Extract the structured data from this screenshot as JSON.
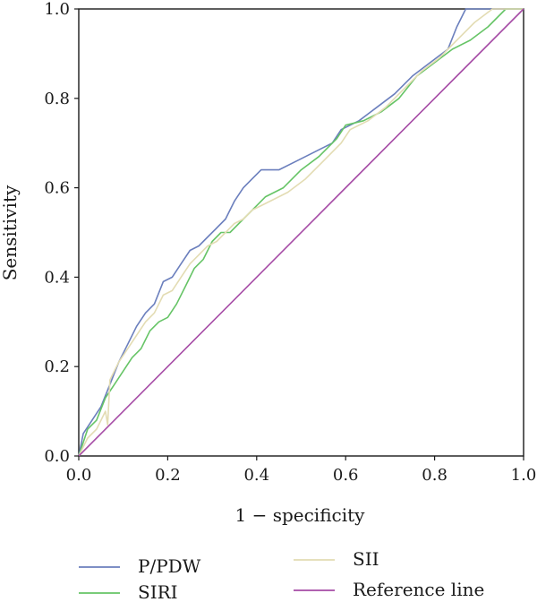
{
  "chart_data": {
    "type": "line",
    "title": "",
    "xlabel": "1 − specificity",
    "ylabel": "Sensitivity",
    "xlim": [
      0.0,
      1.0
    ],
    "ylim": [
      0.0,
      1.0
    ],
    "xticks": [
      "0.0",
      "0.2",
      "0.4",
      "0.6",
      "0.8",
      "1.0"
    ],
    "yticks": [
      "0.0",
      "0.2",
      "0.4",
      "0.6",
      "0.8",
      "1.0"
    ],
    "grid": false,
    "legend_position": "bottom",
    "series": [
      {
        "name": "P/PDW",
        "color": "#6b7fbd",
        "points": [
          [
            0,
            0
          ],
          [
            0.01,
            0.05
          ],
          [
            0.03,
            0.08
          ],
          [
            0.05,
            0.11
          ],
          [
            0.07,
            0.16
          ],
          [
            0.09,
            0.21
          ],
          [
            0.11,
            0.25
          ],
          [
            0.13,
            0.29
          ],
          [
            0.15,
            0.32
          ],
          [
            0.17,
            0.34
          ],
          [
            0.19,
            0.39
          ],
          [
            0.21,
            0.4
          ],
          [
            0.23,
            0.43
          ],
          [
            0.25,
            0.46
          ],
          [
            0.27,
            0.47
          ],
          [
            0.29,
            0.49
          ],
          [
            0.31,
            0.51
          ],
          [
            0.33,
            0.53
          ],
          [
            0.35,
            0.57
          ],
          [
            0.37,
            0.6
          ],
          [
            0.39,
            0.62
          ],
          [
            0.41,
            0.64
          ],
          [
            0.45,
            0.64
          ],
          [
            0.49,
            0.66
          ],
          [
            0.53,
            0.68
          ],
          [
            0.57,
            0.7
          ],
          [
            0.59,
            0.73
          ],
          [
            0.63,
            0.75
          ],
          [
            0.67,
            0.78
          ],
          [
            0.71,
            0.81
          ],
          [
            0.75,
            0.85
          ],
          [
            0.79,
            0.88
          ],
          [
            0.83,
            0.91
          ],
          [
            0.85,
            0.96
          ],
          [
            0.87,
            1.0
          ],
          [
            1.0,
            1.0
          ]
        ]
      },
      {
        "name": "SIRI",
        "color": "#66c466",
        "points": [
          [
            0,
            0
          ],
          [
            0.02,
            0.06
          ],
          [
            0.04,
            0.08
          ],
          [
            0.06,
            0.13
          ],
          [
            0.08,
            0.16
          ],
          [
            0.1,
            0.19
          ],
          [
            0.12,
            0.22
          ],
          [
            0.14,
            0.24
          ],
          [
            0.16,
            0.28
          ],
          [
            0.18,
            0.3
          ],
          [
            0.2,
            0.31
          ],
          [
            0.22,
            0.34
          ],
          [
            0.24,
            0.38
          ],
          [
            0.26,
            0.42
          ],
          [
            0.28,
            0.44
          ],
          [
            0.3,
            0.48
          ],
          [
            0.32,
            0.5
          ],
          [
            0.34,
            0.5
          ],
          [
            0.36,
            0.52
          ],
          [
            0.38,
            0.54
          ],
          [
            0.4,
            0.56
          ],
          [
            0.42,
            0.58
          ],
          [
            0.46,
            0.6
          ],
          [
            0.5,
            0.64
          ],
          [
            0.54,
            0.67
          ],
          [
            0.58,
            0.71
          ],
          [
            0.6,
            0.74
          ],
          [
            0.64,
            0.75
          ],
          [
            0.68,
            0.77
          ],
          [
            0.72,
            0.8
          ],
          [
            0.76,
            0.85
          ],
          [
            0.8,
            0.88
          ],
          [
            0.84,
            0.91
          ],
          [
            0.88,
            0.93
          ],
          [
            0.92,
            0.96
          ],
          [
            0.96,
            1.0
          ],
          [
            1.0,
            1.0
          ]
        ]
      },
      {
        "name": "SII",
        "color": "#e3dcb3",
        "points": [
          [
            0,
            0
          ],
          [
            0.02,
            0.04
          ],
          [
            0.04,
            0.06
          ],
          [
            0.06,
            0.1
          ],
          [
            0.065,
            0.07
          ],
          [
            0.07,
            0.17
          ],
          [
            0.09,
            0.21
          ],
          [
            0.11,
            0.24
          ],
          [
            0.13,
            0.27
          ],
          [
            0.15,
            0.3
          ],
          [
            0.17,
            0.32
          ],
          [
            0.19,
            0.36
          ],
          [
            0.21,
            0.37
          ],
          [
            0.23,
            0.4
          ],
          [
            0.25,
            0.43
          ],
          [
            0.27,
            0.45
          ],
          [
            0.29,
            0.47
          ],
          [
            0.31,
            0.48
          ],
          [
            0.33,
            0.5
          ],
          [
            0.35,
            0.52
          ],
          [
            0.37,
            0.53
          ],
          [
            0.39,
            0.55
          ],
          [
            0.43,
            0.57
          ],
          [
            0.47,
            0.59
          ],
          [
            0.51,
            0.62
          ],
          [
            0.55,
            0.66
          ],
          [
            0.59,
            0.7
          ],
          [
            0.61,
            0.73
          ],
          [
            0.65,
            0.75
          ],
          [
            0.69,
            0.78
          ],
          [
            0.73,
            0.82
          ],
          [
            0.77,
            0.86
          ],
          [
            0.81,
            0.89
          ],
          [
            0.85,
            0.93
          ],
          [
            0.89,
            0.97
          ],
          [
            0.93,
            1.0
          ],
          [
            1.0,
            1.0
          ]
        ]
      },
      {
        "name": "Reference line",
        "color": "#a64ca6",
        "points": [
          [
            0,
            0
          ],
          [
            1,
            1
          ]
        ]
      }
    ]
  }
}
